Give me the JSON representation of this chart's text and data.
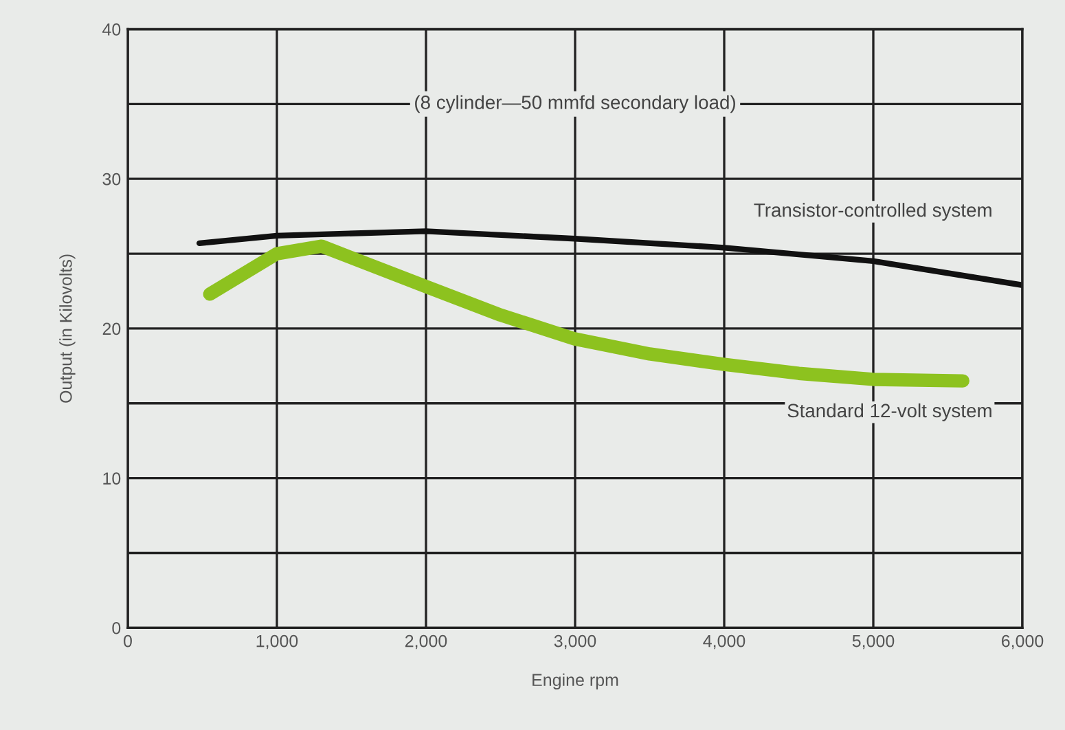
{
  "chart_data": {
    "type": "line",
    "xlabel": "Engine rpm",
    "ylabel": "Output (in Kilovolts)",
    "annotations": [
      "(8 cylinder—50 mmfd secondary load)"
    ],
    "xlim": [
      0,
      6000
    ],
    "ylim": [
      0,
      40
    ],
    "xticks": [
      {
        "value": 0,
        "label": "0"
      },
      {
        "value": 1000,
        "label": "1,000"
      },
      {
        "value": 2000,
        "label": "2,000"
      },
      {
        "value": 3000,
        "label": "3,000"
      },
      {
        "value": 4000,
        "label": "4,000"
      },
      {
        "value": 5000,
        "label": "5,000"
      },
      {
        "value": 6000,
        "label": "6,000"
      }
    ],
    "yticks": [
      0,
      {
        "value": 5,
        "label": null
      },
      10,
      {
        "value": 15,
        "label": null
      },
      20,
      {
        "value": 25,
        "label": null
      },
      30,
      {
        "value": 35,
        "label": null
      },
      40
    ],
    "grid": true,
    "legend": false,
    "marker": "none",
    "line_style": "solid",
    "series": [
      {
        "name": "Transistor-controlled system",
        "color": "#111111",
        "x": [
          480,
          1000,
          2000,
          3000,
          4000,
          5000,
          6000
        ],
        "values": [
          25.7,
          26.2,
          26.5,
          26.0,
          25.4,
          24.5,
          22.9
        ]
      },
      {
        "name": "Standard 12-volt system",
        "color": "#8dc21f",
        "x": [
          550,
          1000,
          1300,
          2000,
          2500,
          3000,
          3500,
          4000,
          4500,
          5000,
          5600
        ],
        "values": [
          22.3,
          25.0,
          25.5,
          22.8,
          20.9,
          19.3,
          18.3,
          17.6,
          17.0,
          16.6,
          16.5
        ]
      }
    ]
  }
}
